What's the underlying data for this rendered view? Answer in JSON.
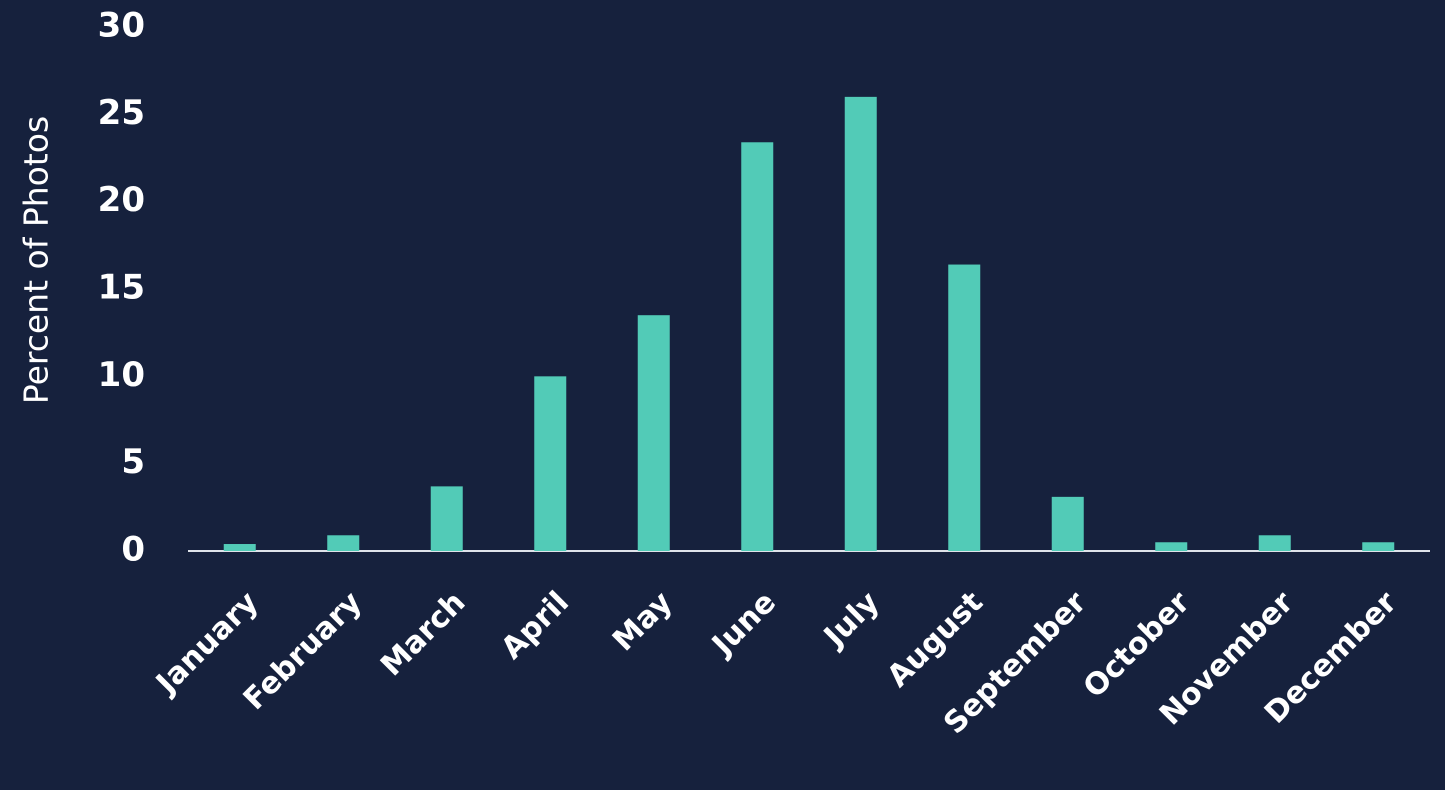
{
  "chart_data": {
    "type": "bar",
    "y_label": "Percent of Photos",
    "categories": [
      "January",
      "February",
      "March",
      "April",
      "May",
      "June",
      "July",
      "August",
      "September",
      "October",
      "November",
      "December"
    ],
    "values": [
      0.4,
      0.9,
      3.7,
      10.0,
      13.5,
      23.4,
      26.0,
      16.4,
      3.1,
      0.5,
      0.9,
      0.5
    ],
    "color": "#52cbb7",
    "ylim": [
      0,
      30
    ],
    "yticks": [
      0,
      5,
      10,
      15,
      20,
      25,
      30
    ],
    "grid": false
  }
}
